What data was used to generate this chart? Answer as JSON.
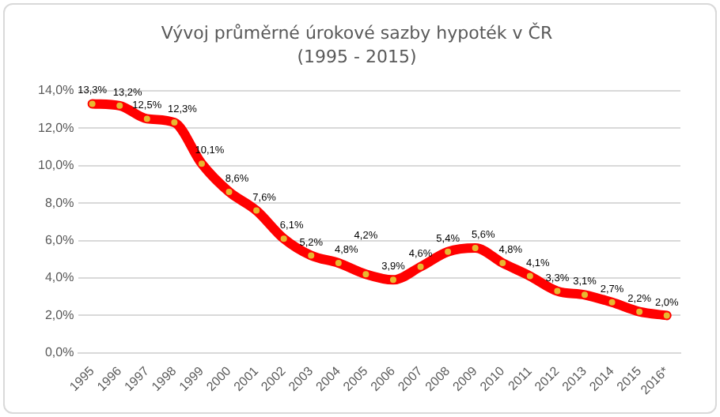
{
  "chart_data": {
    "type": "line",
    "title": "Vývoj průměrné úrokové sazby hypoték v ČR",
    "subtitle": "(1995 - 2015)",
    "categories": [
      "1995",
      "1996",
      "1997",
      "1998",
      "1999",
      "2000",
      "2001",
      "2002",
      "2003",
      "2004",
      "2005",
      "2006",
      "2007",
      "2008",
      "2009",
      "2010",
      "2011",
      "2012",
      "2013",
      "2014",
      "2015",
      "2016*"
    ],
    "series": [
      {
        "color": "#ff0000",
        "values": [
          13.3,
          13.2,
          12.5,
          12.3,
          10.1,
          8.6,
          7.6,
          6.1,
          5.2,
          4.8,
          4.2,
          3.9,
          4.6,
          5.4,
          5.6,
          4.8,
          4.1,
          3.3,
          3.1,
          2.7,
          2.2,
          2.0
        ],
        "value_labels": [
          "13,3%",
          "13,2%",
          "12,5%",
          "12,3%",
          "10,1%",
          "8,6%",
          "7,6%",
          "6,1%",
          "5,2%",
          "4,8%",
          "4,2%",
          "3,9%",
          "4,6%",
          "5,4%",
          "5,6%",
          "4,8%",
          "4,1%",
          "3,3%",
          "3,1%",
          "2,7%",
          "2,2%",
          "2,0%"
        ]
      }
    ],
    "ylim": [
      0,
      14
    ],
    "yticks": [
      {
        "value": 0,
        "label": "0,0%"
      },
      {
        "value": 2,
        "label": "2,0%"
      },
      {
        "value": 4,
        "label": "4,0%"
      },
      {
        "value": 6,
        "label": "6,0%"
      },
      {
        "value": 8,
        "label": "8,0%"
      },
      {
        "value": 10,
        "label": "10,0%"
      },
      {
        "value": 12,
        "label": "12,0%"
      },
      {
        "value": 14,
        "label": "14,0%"
      }
    ],
    "grid": "y",
    "legend": false,
    "marker": "circle",
    "line_style": "solid"
  }
}
